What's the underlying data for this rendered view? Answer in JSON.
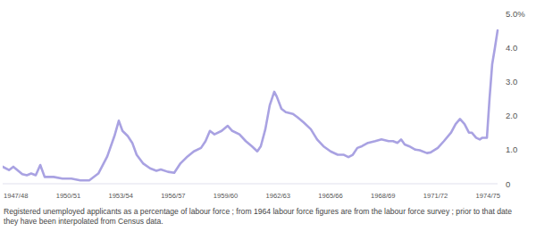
{
  "chart_data": {
    "type": "line",
    "caption": "Registered unemployed applicants as a percentage of labour force ; from 1964 labour force figures are from the labour force survey ; prior to that date they have been interpolated from Census data.",
    "color": "#a9a2e2",
    "xlim": [
      1946.75,
      1975.05
    ],
    "xticks": [
      {
        "value": 1947.5,
        "label": "1947/48"
      },
      {
        "value": 1950.5,
        "label": "1950/51"
      },
      {
        "value": 1953.5,
        "label": "1953/54"
      },
      {
        "value": 1956.5,
        "label": "1956/57"
      },
      {
        "value": 1959.5,
        "label": "1959/60"
      },
      {
        "value": 1962.5,
        "label": "1962/63"
      },
      {
        "value": 1965.5,
        "label": "1965/66"
      },
      {
        "value": 1968.5,
        "label": "1968/69"
      },
      {
        "value": 1971.5,
        "label": "1971/72"
      },
      {
        "value": 1974.5,
        "label": "1974/75"
      }
    ],
    "ylim": [
      0,
      5
    ],
    "yticks": [
      0,
      {
        "value": 1,
        "label": "1.0"
      },
      {
        "value": 2,
        "label": "2.0"
      },
      {
        "value": 3,
        "label": "3.0"
      },
      {
        "value": 4,
        "label": "4.0"
      },
      {
        "value": 5,
        "label": "5.0%"
      }
    ],
    "grid": false,
    "x": [
      1946.75,
      1947.11,
      1947.36,
      1947.87,
      1948.13,
      1948.38,
      1948.64,
      1948.9,
      1949.15,
      1949.66,
      1950.17,
      1950.68,
      1951.19,
      1951.7,
      1952.22,
      1952.73,
      1953.14,
      1953.39,
      1953.6,
      1953.9,
      1954.16,
      1954.41,
      1954.77,
      1955.18,
      1955.54,
      1955.79,
      1956.2,
      1956.56,
      1956.92,
      1957.32,
      1957.68,
      1958.09,
      1958.35,
      1958.6,
      1958.86,
      1959.27,
      1959.62,
      1959.88,
      1960.29,
      1960.65,
      1961,
      1961.31,
      1961.51,
      1961.77,
      1962.02,
      1962.28,
      1962.43,
      1962.69,
      1962.94,
      1963.35,
      1963.61,
      1963.96,
      1964.37,
      1964.73,
      1965.09,
      1965.5,
      1965.91,
      1966.26,
      1966.52,
      1966.77,
      1967.03,
      1967.29,
      1967.64,
      1968.05,
      1968.41,
      1968.82,
      1969.07,
      1969.33,
      1969.53,
      1969.74,
      1969.99,
      1970.35,
      1970.6,
      1971.01,
      1971.22,
      1971.63,
      1971.98,
      1972.39,
      1972.65,
      1972.9,
      1973.16,
      1973.41,
      1973.57,
      1973.82,
      1974.03,
      1974.18,
      1974.44,
      1974.59,
      1974.74,
      1974.9,
      1975.05
    ],
    "values": [
      0.5,
      0.4,
      0.5,
      0.28,
      0.25,
      0.3,
      0.25,
      0.55,
      0.2,
      0.2,
      0.15,
      0.15,
      0.1,
      0.1,
      0.3,
      0.8,
      1.4,
      1.85,
      1.55,
      1.4,
      1.2,
      0.85,
      0.6,
      0.45,
      0.38,
      0.42,
      0.35,
      0.32,
      0.6,
      0.8,
      0.95,
      1.05,
      1.25,
      1.55,
      1.45,
      1.55,
      1.7,
      1.55,
      1.45,
      1.25,
      1.1,
      0.95,
      1.1,
      1.6,
      2.3,
      2.7,
      2.55,
      2.2,
      2.1,
      2.05,
      1.95,
      1.8,
      1.6,
      1.3,
      1.1,
      0.95,
      0.85,
      0.85,
      0.78,
      0.85,
      1.05,
      1.1,
      1.2,
      1.25,
      1.3,
      1.25,
      1.25,
      1.2,
      1.3,
      1.15,
      1.1,
      1,
      0.98,
      0.9,
      0.92,
      1.05,
      1.25,
      1.5,
      1.75,
      1.9,
      1.75,
      1.5,
      1.5,
      1.35,
      1.3,
      1.35,
      1.35,
      2.5,
      3.5,
      4,
      4.5
    ]
  }
}
